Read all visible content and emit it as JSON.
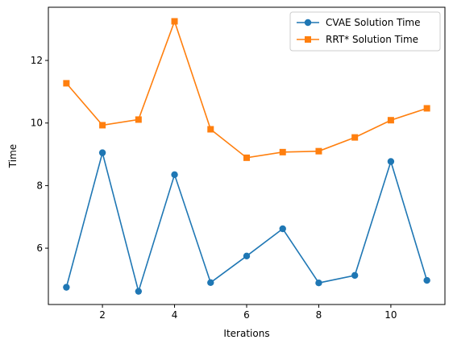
{
  "chart_data": {
    "type": "line",
    "title": "",
    "xlabel": "Iterations",
    "ylabel": "Time",
    "x": [
      1,
      2,
      3,
      4,
      5,
      6,
      7,
      8,
      9,
      10,
      11
    ],
    "xlim": [
      0.5,
      11.5
    ],
    "ylim": [
      4.2,
      13.7
    ],
    "xticks": [
      2,
      4,
      6,
      8,
      10
    ],
    "yticks": [
      6,
      8,
      10,
      12
    ],
    "grid": false,
    "legend_position": "top-right",
    "series": [
      {
        "name": "CVAE Solution Time",
        "color": "#1f77b4",
        "marker": "circle",
        "values": [
          4.75,
          9.05,
          4.62,
          8.35,
          4.9,
          5.75,
          6.62,
          4.89,
          5.13,
          8.77,
          4.97
        ]
      },
      {
        "name": "RRT* Solution Time",
        "color": "#ff7f0e",
        "marker": "square",
        "values": [
          11.27,
          9.93,
          10.11,
          13.25,
          9.8,
          8.89,
          9.07,
          9.1,
          9.54,
          10.09,
          10.47
        ]
      }
    ]
  }
}
